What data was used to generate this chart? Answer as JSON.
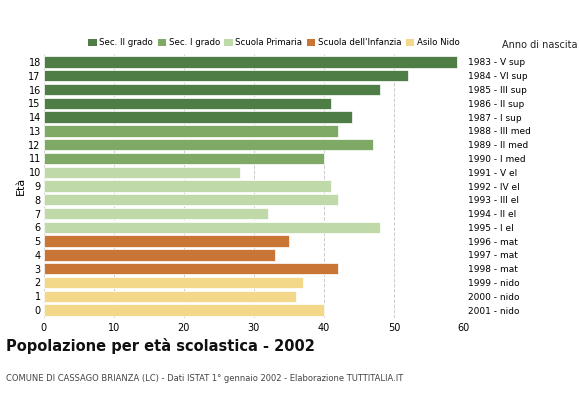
{
  "ages": [
    18,
    17,
    16,
    15,
    14,
    13,
    12,
    11,
    10,
    9,
    8,
    7,
    6,
    5,
    4,
    3,
    2,
    1,
    0
  ],
  "values": [
    59,
    52,
    48,
    41,
    44,
    42,
    47,
    40,
    28,
    41,
    42,
    32,
    48,
    35,
    33,
    42,
    37,
    36,
    40
  ],
  "right_labels": [
    "1983 - V sup",
    "1984 - VI sup",
    "1985 - III sup",
    "1986 - II sup",
    "1987 - I sup",
    "1988 - III med",
    "1989 - II med",
    "1990 - I med",
    "1991 - V el",
    "1992 - IV el",
    "1993 - III el",
    "1994 - II el",
    "1995 - I el",
    "1996 - mat",
    "1997 - mat",
    "1998 - mat",
    "1999 - nido",
    "2000 - nido",
    "2001 - nido"
  ],
  "categories": {
    "Sec. II grado": {
      "ages": [
        18,
        17,
        16,
        15,
        14
      ],
      "color": "#4e7d45"
    },
    "Sec. I grado": {
      "ages": [
        13,
        12,
        11
      ],
      "color": "#7faa65"
    },
    "Scuola Primaria": {
      "ages": [
        10,
        9,
        8,
        7,
        6
      ],
      "color": "#c0d9a8"
    },
    "Scuola dell'Infanzia": {
      "ages": [
        5,
        4,
        3
      ],
      "color": "#c97535"
    },
    "Asilo Nido": {
      "ages": [
        2,
        1,
        0
      ],
      "color": "#f2d888"
    }
  },
  "title": "Popolazione per età scolastica - 2002",
  "subtitle": "COMUNE DI CASSAGO BRIANZA (LC) - Dati ISTAT 1° gennaio 2002 - Elaborazione TUTTITALIA.IT",
  "ylabel": "Età",
  "right_title": "Anno di nascita",
  "xlim": [
    0,
    60
  ],
  "xticks": [
    0,
    10,
    20,
    30,
    40,
    50,
    60
  ],
  "bg_color": "#ffffff",
  "grid_color": "#cccccc",
  "bar_height": 0.82
}
